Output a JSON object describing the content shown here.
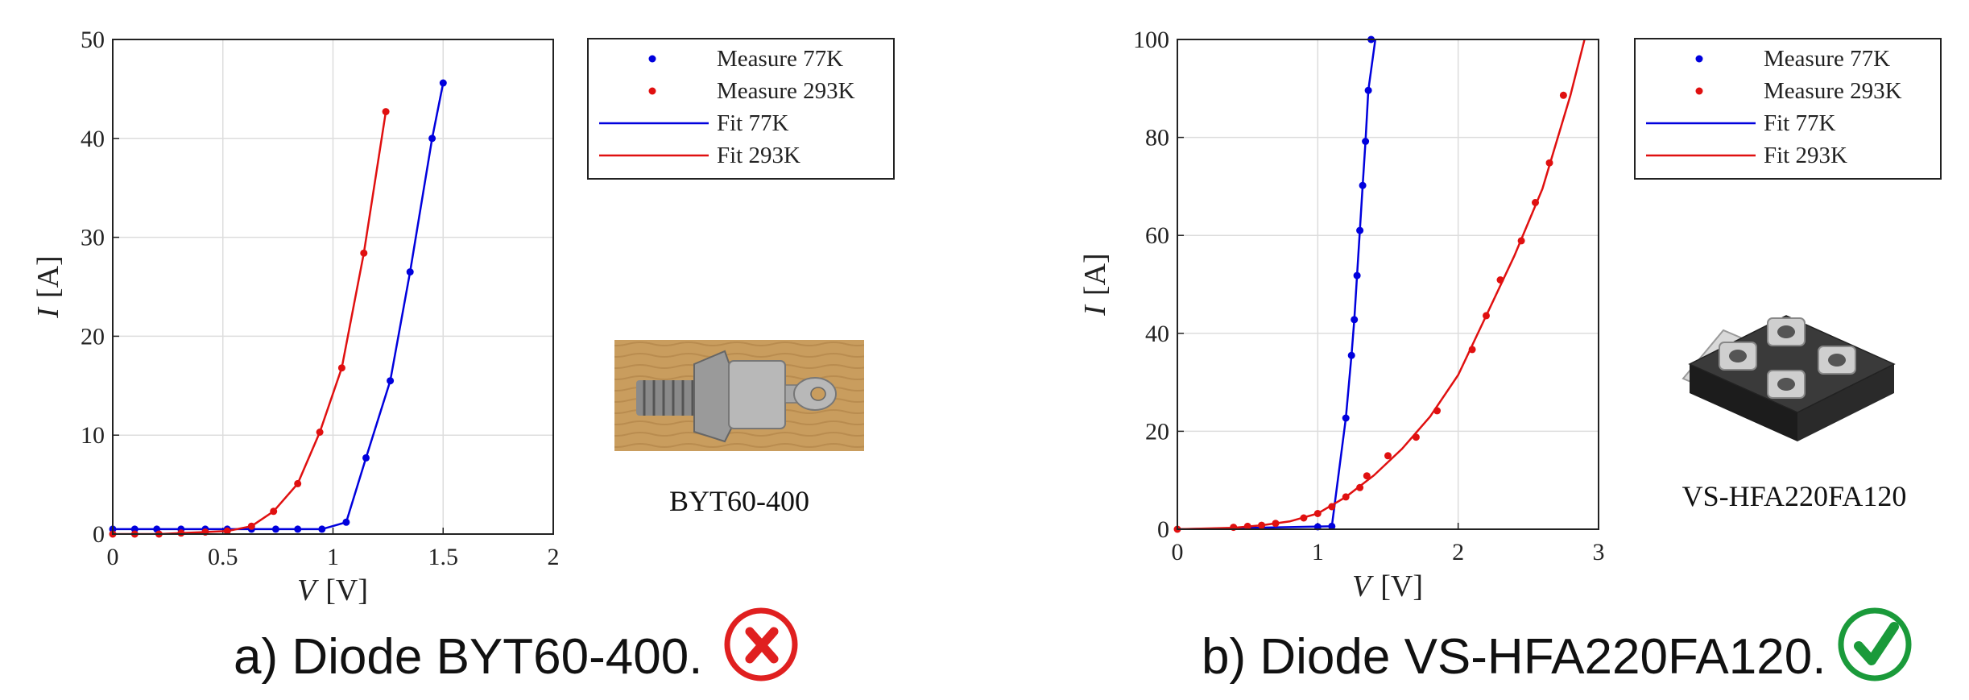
{
  "colors": {
    "series_77K": "#0000dd",
    "series_293K": "#e01010",
    "cross": "#e02020",
    "check": "#1a9a3a"
  },
  "panels": [
    {
      "caption": "a) Diode BYT60-400.",
      "device_label": "BYT60-400",
      "status_icon": "cross-icon"
    },
    {
      "caption": "b) Diode VS-HFA220FA120.",
      "device_label": "VS-HFA220FA120",
      "status_icon": "check-icon"
    }
  ],
  "chart_data": [
    {
      "type": "line",
      "xlabel_var": "V",
      "xlabel_unit": "[V]",
      "ylabel_var": "I",
      "ylabel_unit": "[A]",
      "xlim": [
        0,
        2
      ],
      "ylim": [
        0,
        50
      ],
      "xticks": [
        "0",
        "0.5",
        "1",
        "1.5",
        "2"
      ],
      "yticks": [
        "0",
        "10",
        "20",
        "30",
        "40",
        "50"
      ],
      "grid": true,
      "legend_position": "outside-right-top",
      "legend": [
        "Measure 77K",
        "Measure 293K",
        "Fit 77K",
        "Fit 293K"
      ],
      "series": [
        {
          "name": "Measure 77K",
          "kind": "points",
          "color": "#0000dd",
          "x": [
            0.0,
            0.1,
            0.2,
            0.31,
            0.42,
            0.52,
            0.63,
            0.74,
            0.84,
            0.95,
            1.06,
            1.15,
            1.26,
            1.35,
            1.45,
            1.5
          ],
          "y": [
            0.5,
            0.5,
            0.5,
            0.5,
            0.5,
            0.5,
            0.5,
            0.5,
            0.5,
            0.5,
            1.2,
            7.7,
            15.5,
            26.5,
            40.0,
            45.6
          ]
        },
        {
          "name": "Measure 293K",
          "kind": "points",
          "color": "#e01010",
          "x": [
            0.0,
            0.1,
            0.21,
            0.31,
            0.42,
            0.52,
            0.63,
            0.73,
            0.84,
            0.94,
            1.04,
            1.14,
            1.24
          ],
          "y": [
            0.0,
            0.0,
            0.0,
            0.1,
            0.2,
            0.3,
            0.8,
            2.3,
            5.1,
            10.3,
            16.8,
            28.4,
            42.7
          ]
        },
        {
          "name": "Fit 77K",
          "kind": "line",
          "color": "#0000dd",
          "x": [
            0.0,
            0.1,
            0.2,
            0.31,
            0.42,
            0.52,
            0.63,
            0.74,
            0.84,
            0.95,
            1.06,
            1.15,
            1.26,
            1.35,
            1.45,
            1.5
          ],
          "y": [
            0.5,
            0.5,
            0.5,
            0.5,
            0.5,
            0.5,
            0.5,
            0.5,
            0.5,
            0.5,
            1.2,
            7.7,
            15.5,
            26.5,
            40.0,
            45.6
          ]
        },
        {
          "name": "Fit 293K",
          "kind": "line",
          "color": "#e01010",
          "x": [
            0.0,
            0.1,
            0.21,
            0.31,
            0.42,
            0.52,
            0.63,
            0.73,
            0.84,
            0.94,
            1.04,
            1.14,
            1.24
          ],
          "y": [
            0.0,
            0.0,
            0.0,
            0.1,
            0.2,
            0.3,
            0.8,
            2.3,
            5.1,
            10.3,
            16.8,
            28.4,
            42.7
          ]
        }
      ]
    },
    {
      "type": "line",
      "xlabel_var": "V",
      "xlabel_unit": "[V]",
      "ylabel_var": "I",
      "ylabel_unit": "[A]",
      "xlim": [
        0,
        3
      ],
      "ylim": [
        0,
        100
      ],
      "xticks": [
        "0",
        "1",
        "2",
        "3"
      ],
      "yticks": [
        "0",
        "20",
        "40",
        "60",
        "80",
        "100"
      ],
      "grid": true,
      "legend_position": "outside-right-top",
      "legend": [
        "Measure 77K",
        "Measure 293K",
        "Fit 77K",
        "Fit 293K"
      ],
      "series": [
        {
          "name": "Measure 77K",
          "kind": "points",
          "color": "#0000dd",
          "x": [
            1.0,
            1.1,
            1.2,
            1.24,
            1.26,
            1.28,
            1.3,
            1.32,
            1.34,
            1.36,
            1.38
          ],
          "y": [
            0.5,
            0.6,
            22.7,
            35.5,
            42.8,
            51.8,
            61.0,
            70.2,
            79.2,
            89.6,
            100.0
          ]
        },
        {
          "name": "Measure 293K",
          "kind": "points",
          "color": "#e01010",
          "x": [
            0.0,
            0.4,
            0.5,
            0.6,
            0.7,
            0.9,
            1.0,
            1.1,
            1.2,
            1.3,
            1.35,
            1.5,
            1.7,
            1.85,
            2.1,
            2.2,
            2.3,
            2.45,
            2.55,
            2.65,
            2.75
          ],
          "y": [
            0.0,
            0.4,
            0.6,
            0.8,
            1.2,
            2.3,
            3.2,
            4.6,
            6.6,
            8.5,
            10.9,
            15.0,
            18.8,
            24.2,
            36.7,
            43.6,
            50.9,
            58.9,
            66.7,
            74.8,
            88.6
          ]
        },
        {
          "name": "Fit 77K",
          "kind": "line",
          "color": "#0000dd",
          "x": [
            0.0,
            1.1,
            1.2,
            1.24,
            1.26,
            1.28,
            1.3,
            1.32,
            1.34,
            1.36,
            1.41
          ],
          "y": [
            0.0,
            0.6,
            22.7,
            35.5,
            42.8,
            51.8,
            61.0,
            70.2,
            79.2,
            89.6,
            100.0
          ]
        },
        {
          "name": "Fit 293K",
          "kind": "line",
          "color": "#e01010",
          "x": [
            0.0,
            0.4,
            0.6,
            0.8,
            1.0,
            1.2,
            1.4,
            1.6,
            1.8,
            2.0,
            2.2,
            2.4,
            2.6,
            2.8,
            2.9
          ],
          "y": [
            0.0,
            0.3,
            0.8,
            1.6,
            3.2,
            6.6,
            11.0,
            16.4,
            23.0,
            31.5,
            43.6,
            55.8,
            69.5,
            88.6,
            100.0
          ]
        }
      ]
    }
  ]
}
